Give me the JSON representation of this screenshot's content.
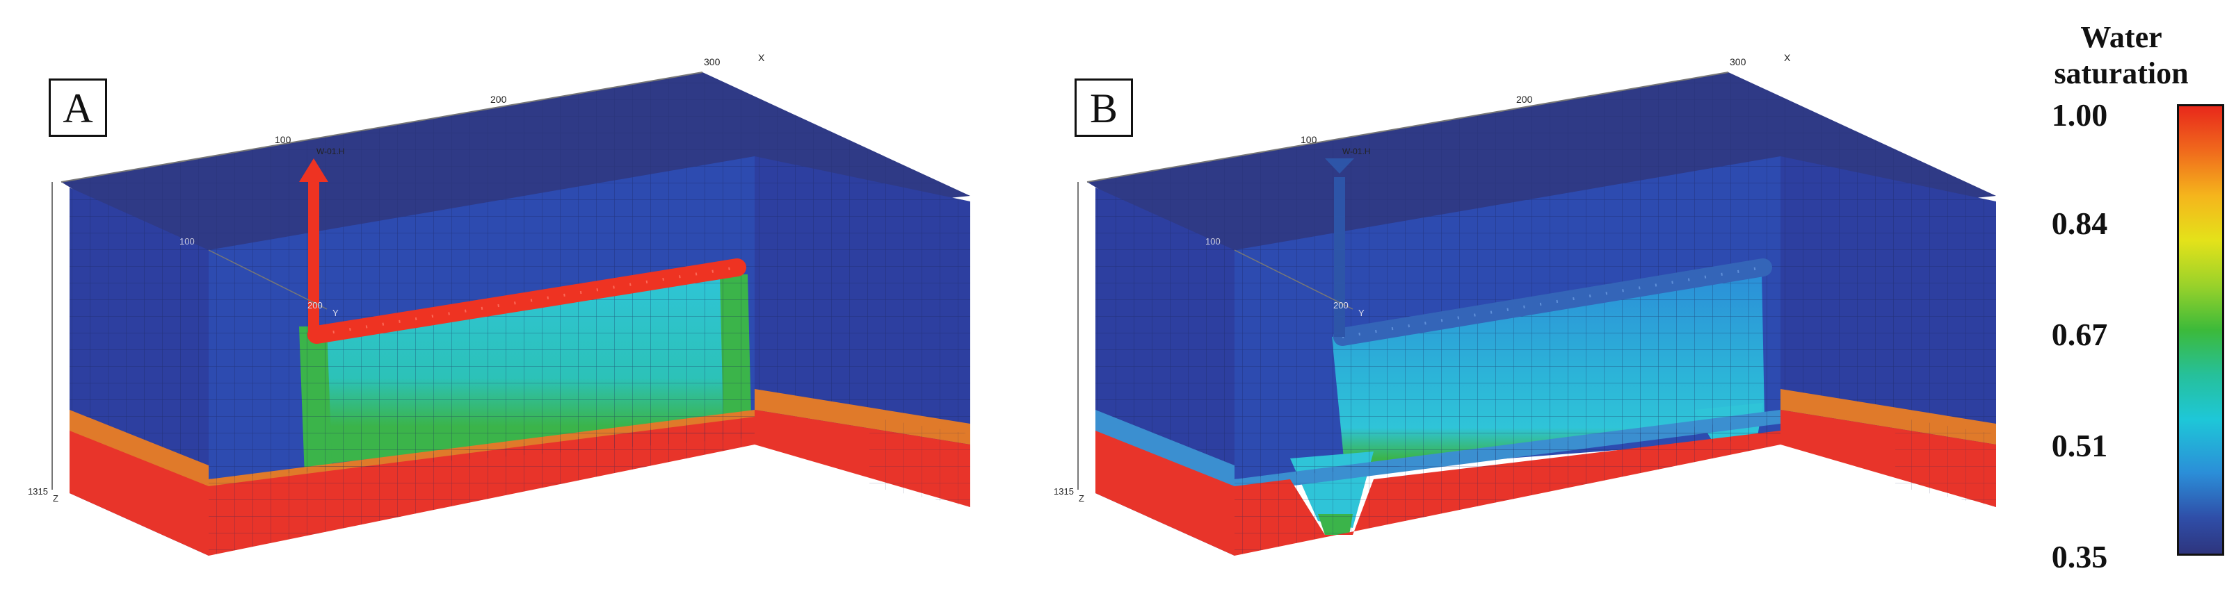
{
  "panels": [
    {
      "label": "A",
      "axis_x": "X",
      "axis_y": "Y",
      "axis_z": "Z",
      "tick_x1": "100",
      "tick_x2": "200",
      "tick_x3": "300",
      "tick_y1": "100",
      "tick_y2": "200",
      "tick_z": "1315",
      "well_label": "W-01.H",
      "well_state": "injecting"
    },
    {
      "label": "B",
      "axis_x": "X",
      "axis_y": "Y",
      "axis_z": "Z",
      "tick_x1": "100",
      "tick_x2": "200",
      "tick_x3": "300",
      "tick_y1": "100",
      "tick_y2": "200",
      "tick_z": "1315",
      "well_label": "W-01.H",
      "well_state": "producing"
    }
  ],
  "legend": {
    "title_line1": "Water",
    "title_line2": "saturation",
    "ticks": [
      "1.00",
      "0.84",
      "0.67",
      "0.51",
      "0.35"
    ],
    "min": 0.35,
    "max": 1.0,
    "colors": {
      "high": "#e8281b",
      "upper": "#e4e21a",
      "mid": "#3cba3a",
      "lower": "#1ec7d8",
      "low": "#2e357e"
    }
  },
  "colors": {
    "caprock_top": "#2f3a86",
    "caprock_side": "#2d3fa0",
    "reservoir": "#e8342a",
    "transition": "#e07a2a",
    "swept_cyan": "#2fc4d8",
    "swept_green": "#3bb44a",
    "well_injector": "#ee3322",
    "well_producer": "#2d55a8"
  }
}
